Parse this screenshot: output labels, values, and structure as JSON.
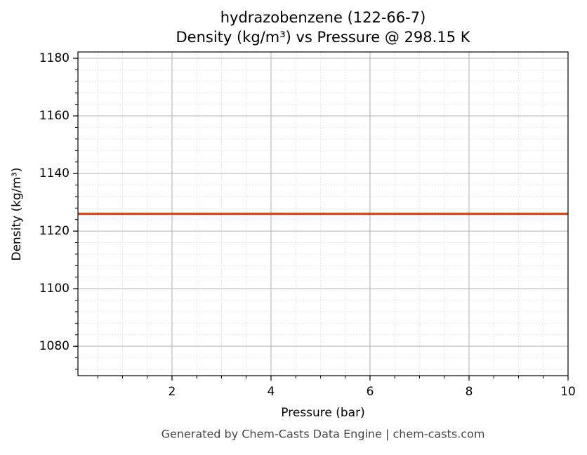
{
  "chart_data": {
    "type": "line",
    "title": "hydrazobenzene (122-66-7)",
    "subtitle": "Density (kg/m³) vs Pressure @ 298.15 K",
    "x_label": "Pressure (bar)",
    "y_label": "Density (kg/m³)",
    "footer": "Generated by Chem-Casts Data Engine | chem-casts.com",
    "x": [
      0.1,
      10
    ],
    "series": [
      {
        "name": "Density",
        "color": "#c8552a",
        "values": [
          1126,
          1126
        ]
      }
    ],
    "xlim": [
      0.1,
      10
    ],
    "xticks": [
      2,
      4,
      6,
      8,
      10
    ],
    "ylim": [
      1069.8,
      1182.2
    ],
    "yticks": [
      1080,
      1100,
      1120,
      1140,
      1160,
      1180
    ],
    "grid": true,
    "minor_grid": true
  }
}
